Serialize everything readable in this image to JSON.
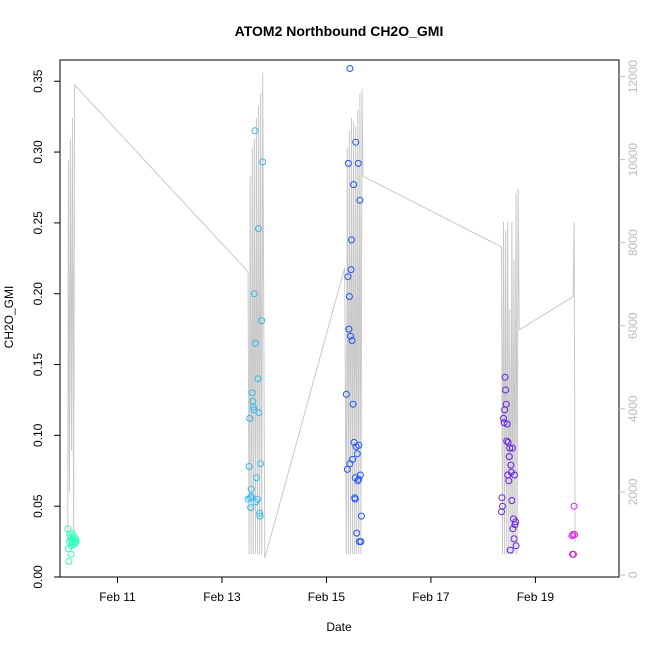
{
  "chart_data": {
    "type": "scatter",
    "title": "ATOM2 Northbound CH2O_GMI",
    "xlabel": "Date",
    "ylabel": "CH2O_GMI",
    "x_unit": "day of February 2017 (fractional)",
    "xlim": [
      9.9,
      20.6
    ],
    "ylim": [
      0.0,
      0.365
    ],
    "y2lim": [
      -50,
      12400
    ],
    "x_ticks": [
      {
        "value": 11,
        "label": "Feb 11"
      },
      {
        "value": 13,
        "label": "Feb 13"
      },
      {
        "value": 15,
        "label": "Feb 15"
      },
      {
        "value": 17,
        "label": "Feb 17"
      },
      {
        "value": 19,
        "label": "Feb 19"
      }
    ],
    "y_ticks": [
      {
        "value": 0.0,
        "label": "0.00"
      },
      {
        "value": 0.05,
        "label": "0.05"
      },
      {
        "value": 0.1,
        "label": "0.10"
      },
      {
        "value": 0.15,
        "label": "0.15"
      },
      {
        "value": 0.2,
        "label": "0.20"
      },
      {
        "value": 0.25,
        "label": "0.25"
      },
      {
        "value": 0.3,
        "label": "0.30"
      },
      {
        "value": 0.35,
        "label": "0.35"
      }
    ],
    "y2_ticks": [
      {
        "value": 0,
        "label": "0"
      },
      {
        "value": 2000,
        "label": "2000"
      },
      {
        "value": 4000,
        "label": "4000"
      },
      {
        "value": 6000,
        "label": "6000"
      },
      {
        "value": 8000,
        "label": "8000"
      },
      {
        "value": 10000,
        "label": "10000"
      },
      {
        "value": 12000,
        "label": "12000"
      }
    ],
    "grid": false,
    "altitude_line_color": "#c8c8c8",
    "altitude_line": [
      [
        10.05,
        1000
      ],
      [
        10.06,
        10000
      ],
      [
        10.08,
        2000
      ],
      [
        10.1,
        10500
      ],
      [
        10.12,
        3000
      ],
      [
        10.14,
        11000
      ],
      [
        10.16,
        1000
      ],
      [
        10.18,
        11800
      ],
      [
        13.5,
        7300
      ],
      [
        13.52,
        500
      ],
      [
        13.54,
        9600
      ],
      [
        13.56,
        500
      ],
      [
        13.58,
        10300
      ],
      [
        13.6,
        500
      ],
      [
        13.62,
        10500
      ],
      [
        13.64,
        500
      ],
      [
        13.66,
        11000
      ],
      [
        13.68,
        500
      ],
      [
        13.7,
        11300
      ],
      [
        13.72,
        500
      ],
      [
        13.74,
        11600
      ],
      [
        13.76,
        500
      ],
      [
        13.78,
        12100
      ],
      [
        13.82,
        400
      ],
      [
        15.35,
        7400
      ],
      [
        15.38,
        500
      ],
      [
        15.4,
        10300
      ],
      [
        15.42,
        500
      ],
      [
        15.44,
        10700
      ],
      [
        15.46,
        500
      ],
      [
        15.48,
        11000
      ],
      [
        15.5,
        500
      ],
      [
        15.52,
        10900
      ],
      [
        15.54,
        500
      ],
      [
        15.56,
        10800
      ],
      [
        15.58,
        500
      ],
      [
        15.6,
        11200
      ],
      [
        15.62,
        500
      ],
      [
        15.64,
        11600
      ],
      [
        15.66,
        500
      ],
      [
        15.68,
        11700
      ],
      [
        15.7,
        9600
      ],
      [
        18.35,
        7900
      ],
      [
        18.37,
        500
      ],
      [
        18.39,
        8500
      ],
      [
        18.41,
        500
      ],
      [
        18.43,
        8300
      ],
      [
        18.45,
        500
      ],
      [
        18.47,
        8500
      ],
      [
        18.49,
        500
      ],
      [
        18.51,
        6400
      ],
      [
        18.53,
        500
      ],
      [
        18.55,
        8500
      ],
      [
        18.57,
        500
      ],
      [
        18.59,
        7600
      ],
      [
        18.61,
        500
      ],
      [
        18.63,
        9200
      ],
      [
        18.65,
        500
      ],
      [
        18.67,
        9300
      ],
      [
        18.69,
        5900
      ],
      [
        19.72,
        6700
      ],
      [
        19.74,
        8500
      ],
      [
        19.76,
        800
      ]
    ],
    "series": [
      {
        "color": "#33ffbb",
        "points": [
          [
            10.05,
            0.034
          ],
          [
            10.06,
            0.02
          ],
          [
            10.07,
            0.011
          ],
          [
            10.08,
            0.025
          ],
          [
            10.09,
            0.03
          ],
          [
            10.1,
            0.028
          ],
          [
            10.11,
            0.022
          ],
          [
            10.12,
            0.026
          ],
          [
            10.13,
            0.024
          ],
          [
            10.14,
            0.027
          ],
          [
            10.15,
            0.025
          ],
          [
            10.16,
            0.029
          ],
          [
            10.17,
            0.023
          ],
          [
            10.18,
            0.026
          ],
          [
            10.19,
            0.024
          ],
          [
            10.2,
            0.027
          ],
          [
            10.21,
            0.025
          ],
          [
            10.11,
            0.016
          ],
          [
            10.13,
            0.031
          ]
        ]
      },
      {
        "color": "#33bbee",
        "points": [
          [
            13.52,
            0.078
          ],
          [
            13.53,
            0.112
          ],
          [
            13.54,
            0.056
          ],
          [
            13.55,
            0.049
          ],
          [
            13.56,
            0.062
          ],
          [
            13.58,
            0.13
          ],
          [
            13.59,
            0.124
          ],
          [
            13.6,
            0.12
          ],
          [
            13.61,
            0.118
          ],
          [
            13.62,
            0.2
          ],
          [
            13.63,
            0.315
          ],
          [
            13.64,
            0.165
          ],
          [
            13.65,
            0.053
          ],
          [
            13.66,
            0.07
          ],
          [
            13.68,
            0.055
          ],
          [
            13.69,
            0.14
          ],
          [
            13.7,
            0.246
          ],
          [
            13.71,
            0.116
          ],
          [
            13.72,
            0.045
          ],
          [
            13.73,
            0.043
          ],
          [
            13.74,
            0.08
          ],
          [
            13.76,
            0.181
          ],
          [
            13.78,
            0.293
          ],
          [
            13.5,
            0.055
          ],
          [
            13.56,
            0.057
          ]
        ]
      },
      {
        "color": "#2255ee",
        "points": [
          [
            15.38,
            0.129
          ],
          [
            15.4,
            0.076
          ],
          [
            15.41,
            0.212
          ],
          [
            15.42,
            0.292
          ],
          [
            15.43,
            0.175
          ],
          [
            15.44,
            0.198
          ],
          [
            15.45,
            0.08
          ],
          [
            15.46,
            0.17
          ],
          [
            15.47,
            0.217
          ],
          [
            15.48,
            0.238
          ],
          [
            15.49,
            0.167
          ],
          [
            15.5,
            0.083
          ],
          [
            15.51,
            0.122
          ],
          [
            15.52,
            0.277
          ],
          [
            15.53,
            0.095
          ],
          [
            15.54,
            0.056
          ],
          [
            15.55,
            0.07
          ],
          [
            15.56,
            0.307
          ],
          [
            15.57,
            0.092
          ],
          [
            15.58,
            0.031
          ],
          [
            15.59,
            0.087
          ],
          [
            15.6,
            0.068
          ],
          [
            15.61,
            0.292
          ],
          [
            15.62,
            0.093
          ],
          [
            15.63,
            0.025
          ],
          [
            15.64,
            0.266
          ],
          [
            15.65,
            0.072
          ],
          [
            15.66,
            0.025
          ],
          [
            15.67,
            0.043
          ],
          [
            15.45,
            0.359
          ],
          [
            15.55,
            0.055
          ],
          [
            15.62,
            0.069
          ]
        ]
      },
      {
        "color": "#6622dd",
        "points": [
          [
            18.35,
            0.046
          ],
          [
            18.36,
            0.056
          ],
          [
            18.37,
            0.05
          ],
          [
            18.39,
            0.112
          ],
          [
            18.4,
            0.109
          ],
          [
            18.41,
            0.118
          ],
          [
            18.42,
            0.141
          ],
          [
            18.43,
            0.132
          ],
          [
            18.44,
            0.122
          ],
          [
            18.45,
            0.096
          ],
          [
            18.46,
            0.108
          ],
          [
            18.47,
            0.072
          ],
          [
            18.48,
            0.095
          ],
          [
            18.49,
            0.068
          ],
          [
            18.5,
            0.085
          ],
          [
            18.51,
            0.091
          ],
          [
            18.52,
            0.019
          ],
          [
            18.53,
            0.079
          ],
          [
            18.54,
            0.074
          ],
          [
            18.55,
            0.054
          ],
          [
            18.56,
            0.091
          ],
          [
            18.57,
            0.034
          ],
          [
            18.58,
            0.041
          ],
          [
            18.59,
            0.027
          ],
          [
            18.6,
            0.072
          ],
          [
            18.61,
            0.037
          ],
          [
            18.62,
            0.039
          ],
          [
            18.63,
            0.022
          ]
        ]
      },
      {
        "color": "#dd22dd",
        "points": [
          [
            19.7,
            0.029
          ],
          [
            19.71,
            0.016
          ],
          [
            19.72,
            0.03
          ],
          [
            19.73,
            0.016
          ],
          [
            19.74,
            0.05
          ],
          [
            19.75,
            0.03
          ]
        ]
      }
    ]
  }
}
